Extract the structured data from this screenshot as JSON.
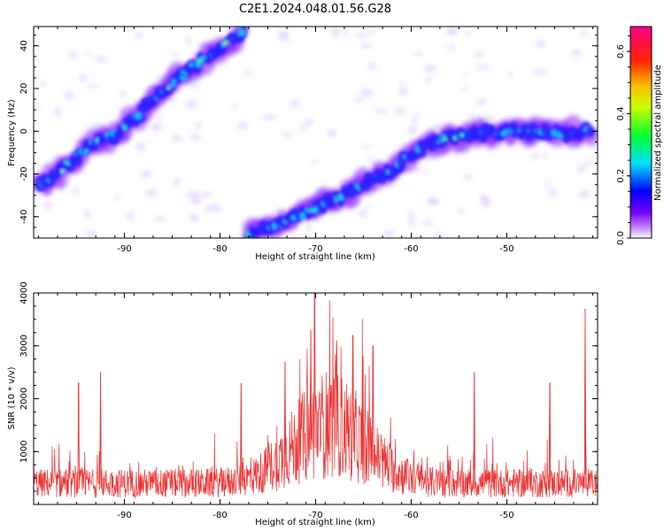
{
  "figure_title": "C2E1.2024.048.01.56.G28",
  "colors": {
    "snr_line": "#ee3333",
    "frame": "#000000"
  },
  "chart_data": [
    {
      "type": "heatmap",
      "xlabel": "Height of straight line (km)",
      "ylabel": "Frequency (Hz)",
      "xlim": [
        -99.5,
        -40.5
      ],
      "ylim": [
        -50,
        49
      ],
      "x_ticks": [
        "-90",
        "-80",
        "-70",
        "-60",
        "-50"
      ],
      "x_tick_values": [
        -90,
        -80,
        -70,
        -60,
        -50
      ],
      "y_ticks": [
        "-40",
        "-20",
        "0",
        "20",
        "40"
      ],
      "y_tick_values": [
        -40,
        -20,
        0,
        20,
        40
      ],
      "colormap": "gist_rainbow_r",
      "colorbar": {
        "label": "Normalized spectral amplitude",
        "range": [
          0,
          0.68
        ],
        "ticks": [
          "0.0",
          "0.2",
          "0.4",
          "0.6"
        ],
        "tick_values": [
          0.0,
          0.2,
          0.4,
          0.6
        ]
      },
      "bands": [
        {
          "name": "",
          "x": [
            -99,
            -97,
            -95,
            -93,
            -91,
            -89,
            -87,
            -85,
            -83,
            -81,
            -79,
            -77.5
          ],
          "y": [
            -25,
            -20,
            -12,
            -5,
            -2,
            5,
            15,
            22,
            30,
            36,
            42,
            48
          ]
        },
        {
          "name": "",
          "x": [
            -77,
            -74,
            -71,
            -68,
            -65,
            -62,
            -59,
            -56,
            -53,
            -50,
            -47,
            -44,
            -41
          ],
          "y": [
            -48,
            -43,
            -38,
            -32,
            -25,
            -18,
            -8,
            -3,
            -1,
            0,
            0,
            -1,
            0
          ]
        }
      ]
    },
    {
      "type": "line",
      "xlabel": "Height of straight line (km)",
      "ylabel": "SNR (10 * v/v)",
      "xlim": [
        -99.5,
        -40.5
      ],
      "ylim": [
        0,
        4000
      ],
      "x_ticks": [
        "-90",
        "-80",
        "-70",
        "-60",
        "-50"
      ],
      "x_tick_values": [
        -90,
        -80,
        -70,
        -60,
        -50
      ],
      "y_ticks": [
        "1000",
        "2000",
        "3000",
        "4000"
      ],
      "y_tick_values": [
        1000,
        2000,
        3000,
        4000
      ],
      "peaks": [
        {
          "x": -94.8,
          "y": 2300
        },
        {
          "x": -92.5,
          "y": 2500
        },
        {
          "x": -77.8,
          "y": 2300
        },
        {
          "x": -73.2,
          "y": 2700
        },
        {
          "x": -70.5,
          "y": 3300
        },
        {
          "x": -70.1,
          "y": 4000
        },
        {
          "x": -67.8,
          "y": 3100
        },
        {
          "x": -66.1,
          "y": 3200
        },
        {
          "x": -64.0,
          "y": 3000
        },
        {
          "x": -53.4,
          "y": 2500
        },
        {
          "x": -45.5,
          "y": 2300
        },
        {
          "x": -41.8,
          "y": 3700
        }
      ],
      "baseline_level": 500
    }
  ]
}
